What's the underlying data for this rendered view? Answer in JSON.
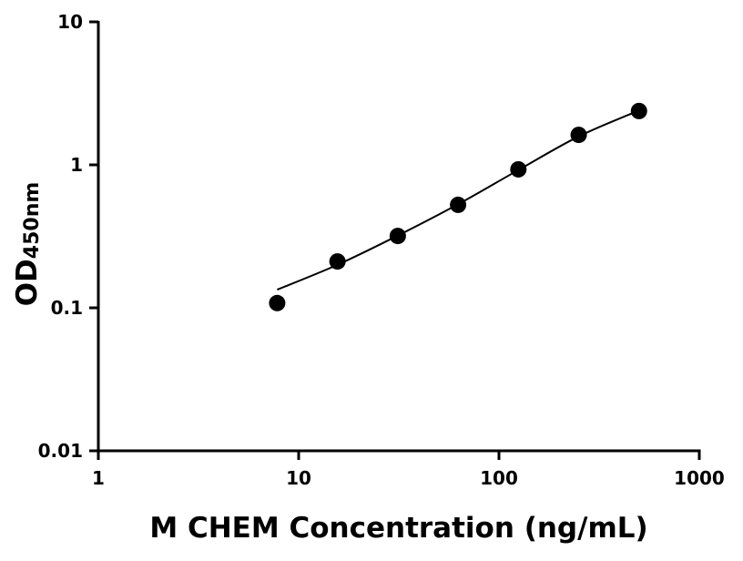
{
  "chart_data": {
    "type": "scatter",
    "title": "",
    "xlabel": "M CHEM Concentration (ng/mL)",
    "ylabel": "OD",
    "ylabel_subscript": "450nm",
    "x_scale": "log",
    "y_scale": "log",
    "xlim": [
      1,
      1000
    ],
    "ylim": [
      0.01,
      10
    ],
    "x_ticks": [
      "1",
      "10",
      "100",
      "1000"
    ],
    "y_ticks": [
      "0.01",
      "0.1",
      "1",
      "10"
    ],
    "grid": false,
    "legend": "none",
    "series": [
      {
        "kind": "points",
        "x": [
          7.8125,
          15.625,
          31.25,
          62.5,
          125,
          250,
          500
        ],
        "y": [
          0.108,
          0.211,
          0.318,
          0.525,
          0.93,
          1.62,
          2.38
        ],
        "color": "#000000"
      },
      {
        "kind": "fit-curve",
        "x": [
          7.8125,
          15.625,
          31.25,
          62.5,
          125,
          250,
          500
        ],
        "y": [
          0.134,
          0.2,
          0.32,
          0.53,
          0.92,
          1.58,
          2.4
        ],
        "color": "#000000"
      }
    ]
  }
}
